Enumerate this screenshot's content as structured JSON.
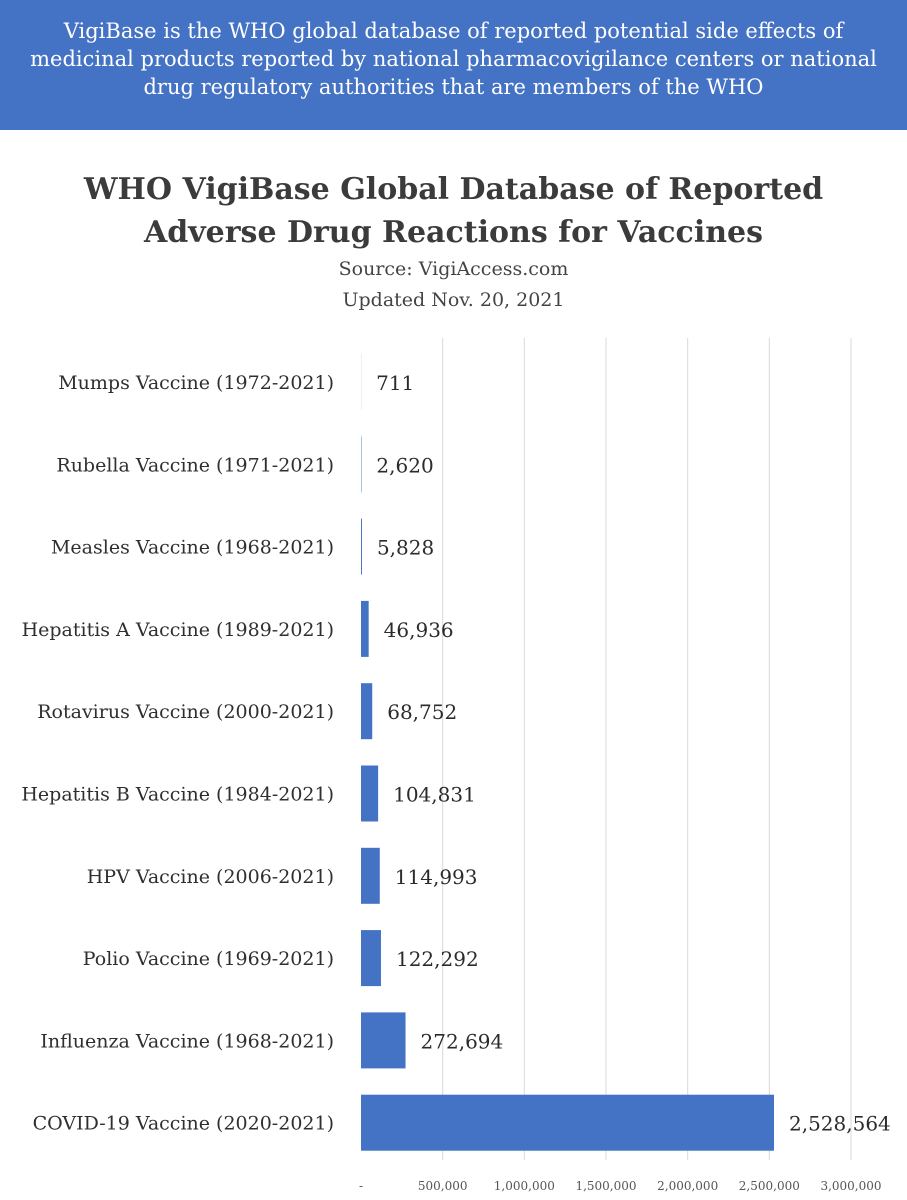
{
  "banner": {
    "text": "VigiBase is the WHO global database of reported potential side effects of medicinal products reported by national pharmacovigilance centers or national drug regulatory authorities that are members of the WHO"
  },
  "colors": {
    "banner": "#4472c4",
    "bar": "#4472c4",
    "grid": "#d9d9d9"
  },
  "chart_data": {
    "type": "bar",
    "orientation": "horizontal",
    "title_line1": "WHO VigiBase Global Database of Reported",
    "title_line2": "Adverse Drug Reactions for Vaccines",
    "source": "Source: VigiAccess.com",
    "updated": "Updated Nov. 20, 2021",
    "categories": [
      "Mumps Vaccine (1972-2021)",
      "Rubella Vaccine (1971-2021)",
      "Measles Vaccine (1968-2021)",
      "Hepatitis A Vaccine (1989-2021)",
      "Rotavirus Vaccine (2000-2021)",
      "Hepatitis B Vaccine (1984-2021)",
      "HPV Vaccine (2006-2021)",
      "Polio Vaccine (1969-2021)",
      "Influenza Vaccine (1968-2021)",
      "COVID-19 Vaccine (2020-2021)"
    ],
    "values": [
      711,
      2620,
      5828,
      46936,
      68752,
      104831,
      114993,
      122292,
      272694,
      2528564
    ],
    "value_labels": [
      "711",
      "2,620",
      "5,828",
      "46,936",
      "68,752",
      "104,831",
      "114,993",
      "122,292",
      "272,694",
      "2,528,564"
    ],
    "xlim": [
      0,
      3000000
    ],
    "ticks": [
      0,
      500000,
      1000000,
      1500000,
      2000000,
      2500000,
      3000000
    ],
    "tick_labels": [
      "-",
      "500,000",
      "1,000,000",
      "1,500,000",
      "2,000,000",
      "2,500,000",
      "3,000,000"
    ],
    "grid": true,
    "legend": false
  }
}
